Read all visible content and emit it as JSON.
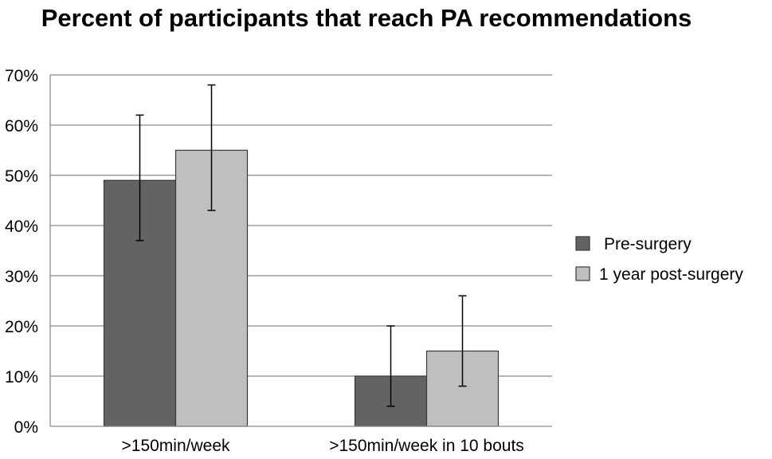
{
  "chart_data": {
    "type": "bar",
    "title": "Percent of participants that reach PA recommendations",
    "categories": [
      ">150min/week",
      ">150min/week in 10 bouts"
    ],
    "series": [
      {
        "name": "Pre-surgery",
        "values": [
          49,
          10
        ],
        "error_low": [
          37,
          4
        ],
        "error_high": [
          62,
          20
        ],
        "color": "#636363"
      },
      {
        "name": "1 year post-surgery",
        "values": [
          55,
          15
        ],
        "error_low": [
          43,
          8
        ],
        "error_high": [
          68,
          26
        ],
        "color": "#bfbfbf"
      }
    ],
    "ylim": [
      0,
      70
    ],
    "y_ticks": [
      0,
      10,
      20,
      30,
      40,
      50,
      60,
      70
    ],
    "y_tick_format": "%",
    "grid": true,
    "legend_position": "right"
  }
}
